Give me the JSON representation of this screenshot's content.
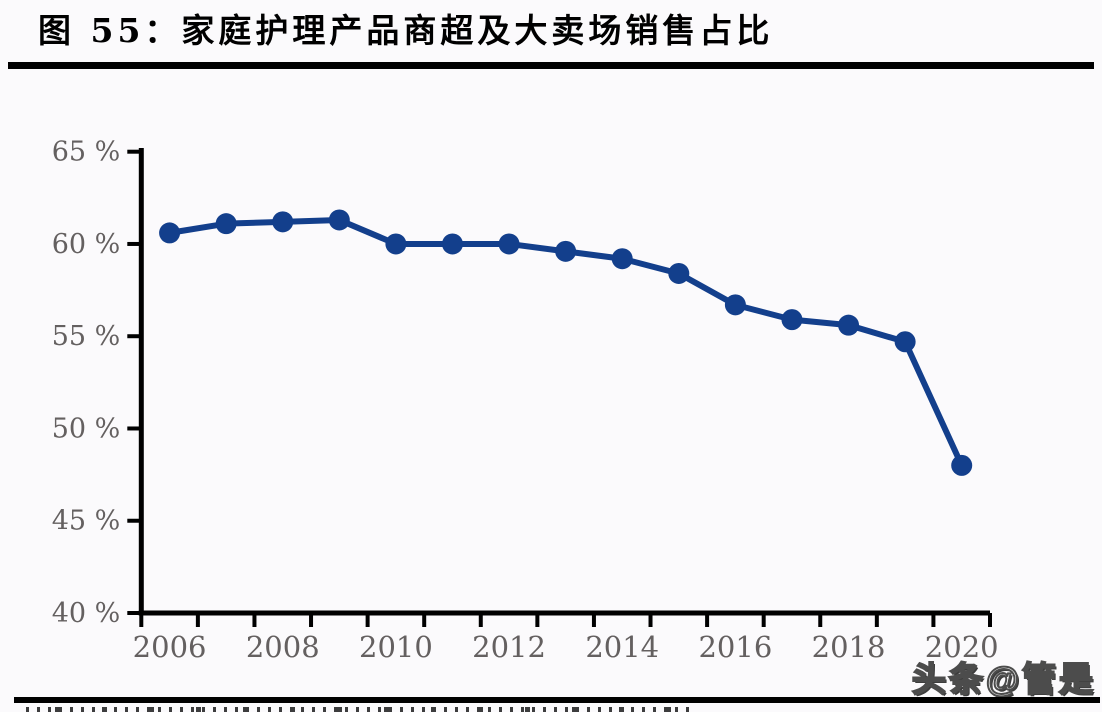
{
  "page": {
    "title": "图 55：家庭护理产品商超及大卖场销售占比",
    "watermark": "头条@管是"
  },
  "colors": {
    "line": "#133f8c",
    "marker": "#133f8c",
    "axis": "#000000",
    "tick_label": "#646060",
    "title": "#000000",
    "divider": "#000000",
    "watermark_fill": "#ffffff",
    "watermark_outline": "#4c4c4c",
    "background": "#fbfafc"
  },
  "chart_data": {
    "type": "line",
    "title": "家庭护理产品商超及大卖场销售占比",
    "x": [
      2006,
      2007,
      2008,
      2009,
      2010,
      2011,
      2012,
      2013,
      2014,
      2015,
      2016,
      2017,
      2018,
      2019,
      2020
    ],
    "values": [
      60.6,
      61.1,
      61.2,
      61.3,
      60.0,
      60.0,
      60.0,
      59.6,
      59.2,
      58.4,
      56.7,
      55.9,
      55.6,
      54.7,
      48.0
    ],
    "xlabel": "",
    "ylabel": "",
    "ylim": [
      40,
      65
    ],
    "ytick_step": 5,
    "ytick_suffix": " %",
    "xtick_labeled_years": [
      2006,
      2008,
      2010,
      2012,
      2014,
      2016,
      2018,
      2020
    ],
    "grid": false,
    "legend": "none",
    "marker": "filled-circle"
  }
}
